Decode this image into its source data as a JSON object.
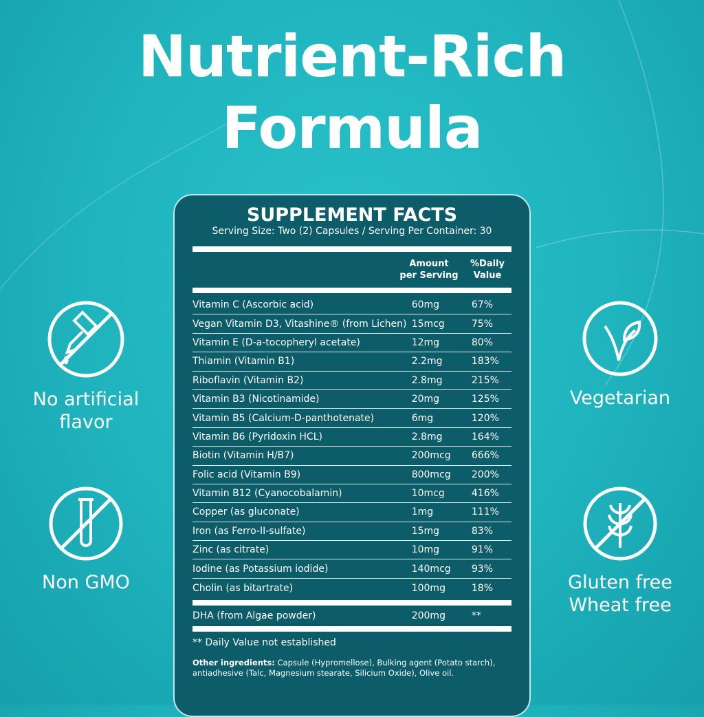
{
  "headline": {
    "line1": "Nutrient-Rich",
    "line2": "Formula"
  },
  "panel": {
    "title": "SUPPLEMENT FACTS",
    "serving": "Serving Size: Two (2) Capsules / Serving Per Container: 30",
    "col_amount_1": "Amount",
    "col_amount_2": "per Serving",
    "col_dv_1": "%Daily",
    "col_dv_2": "Value",
    "rows": [
      {
        "name": "Vitamin C (Ascorbic acid)",
        "amount": "60mg",
        "dv": "67%"
      },
      {
        "name": "Vegan Vitamin D3, Vitashine® (from Lichen)",
        "amount": "15mcg",
        "dv": "75%"
      },
      {
        "name": "Vitamin E (D-a-tocopheryl acetate)",
        "amount": "12mg",
        "dv": "80%"
      },
      {
        "name": "Thiamin (Vitamin B1)",
        "amount": "2.2mg",
        "dv": "183%"
      },
      {
        "name": "Riboflavin (Vitamin B2)",
        "amount": "2.8mg",
        "dv": "215%"
      },
      {
        "name": "Vitamin B3 (Nicotinamide)",
        "amount": "20mg",
        "dv": "125%"
      },
      {
        "name": "Vitamin B5 (Calcium-D-panthotenate)",
        "amount": "6mg",
        "dv": "120%"
      },
      {
        "name": "Vitamin B6 (Pyridoxin HCL)",
        "amount": "2.8mg",
        "dv": "164%"
      },
      {
        "name": "Biotin (Vitamin H/B7)",
        "amount": "200mcg",
        "dv": "666%"
      },
      {
        "name": "Folic acid (Vitamin B9)",
        "amount": "800mcg",
        "dv": "200%"
      },
      {
        "name": "Vitamin B12 (Cyanocobalamin)",
        "amount": "10mcg",
        "dv": "416%"
      },
      {
        "name": "Copper (as gluconate)",
        "amount": "1mg",
        "dv": "111%"
      },
      {
        "name": "Iron (as Ferro-II-sulfate)",
        "amount": "15mg",
        "dv": "83%"
      },
      {
        "name": "Zinc (as citrate)",
        "amount": "10mg",
        "dv": "91%"
      },
      {
        "name": "Iodine (as Potassium iodide)",
        "amount": "140mcg",
        "dv": "93%"
      },
      {
        "name": "Cholin (as bitartrate)",
        "amount": "100mg",
        "dv": "18%"
      }
    ],
    "dha": {
      "name": "DHA (from Algae powder)",
      "amount": "200mg",
      "dv": "**"
    },
    "note": "** Daily Value not established",
    "other_label": "Other ingredients:",
    "other_text": " Capsule (Hypromellose), Bulking agent (Potato starch), antiadhesive (Talc, Magnesium stearate, Silicium Oxide), Olive oil."
  },
  "features": {
    "no_flavor": {
      "l1": "No artificial",
      "l2": "flavor",
      "icon": "no-dropper-icon"
    },
    "non_gmo": {
      "l1": "Non GMO",
      "icon": "no-test-tube-icon"
    },
    "vegetarian": {
      "l1": "Vegetarian",
      "icon": "leaf-icon"
    },
    "gluten": {
      "l1": "Gluten free",
      "l2": "Wheat free",
      "icon": "no-wheat-icon"
    }
  },
  "colors": {
    "background": "#1fb3bd",
    "panel": "#0c5d69",
    "text": "#ffffff"
  }
}
